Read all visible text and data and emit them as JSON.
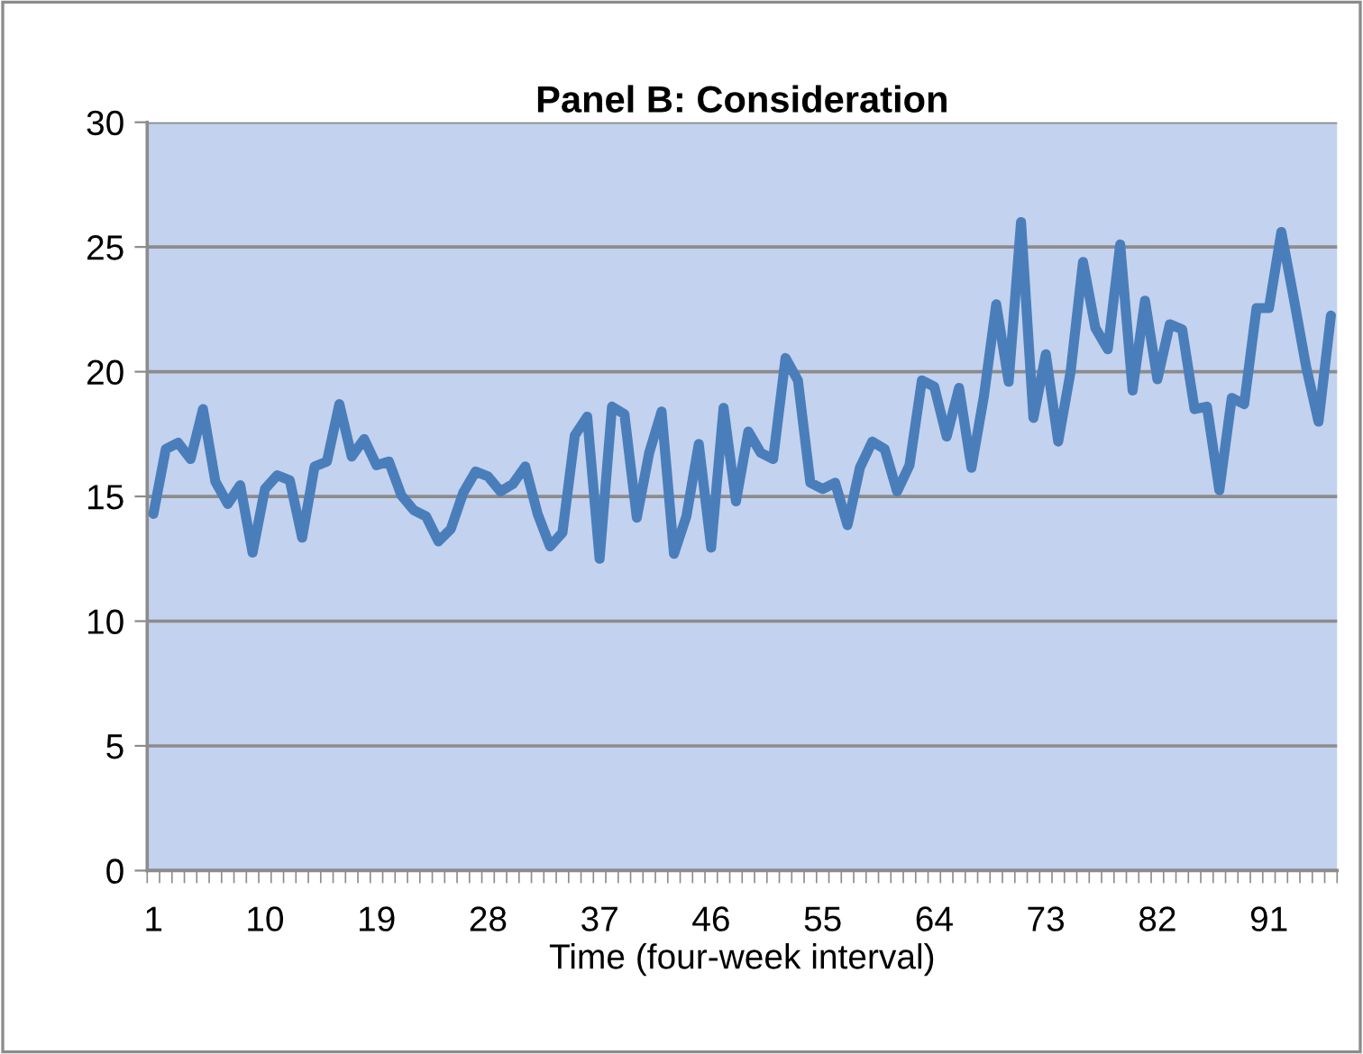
{
  "chart_data": {
    "type": "line",
    "title": "Panel B: Consideration",
    "xlabel": "Time (four-week interval)",
    "categories": [
      "1",
      null,
      null,
      null,
      null,
      null,
      null,
      null,
      null,
      "10",
      null,
      null,
      null,
      null,
      null,
      null,
      null,
      null,
      "19",
      null,
      null,
      null,
      null,
      null,
      null,
      null,
      null,
      "28",
      null,
      null,
      null,
      null,
      null,
      null,
      null,
      null,
      "37",
      null,
      null,
      null,
      null,
      null,
      null,
      null,
      null,
      "46",
      null,
      null,
      null,
      null,
      null,
      null,
      null,
      null,
      "55",
      null,
      null,
      null,
      null,
      null,
      null,
      null,
      null,
      "64",
      null,
      null,
      null,
      null,
      null,
      null,
      null,
      null,
      "73",
      null,
      null,
      null,
      null,
      null,
      null,
      null,
      null,
      "82",
      null,
      null,
      null,
      null,
      null,
      null,
      null,
      null,
      "91",
      null,
      null,
      null,
      null,
      null
    ],
    "series": [
      {
        "color": "#4a7ebb",
        "values": [
          14.3,
          16.9,
          17.15,
          16.5,
          18.5,
          15.6,
          14.7,
          15.45,
          12.75,
          15.3,
          15.85,
          15.65,
          13.35,
          16.2,
          16.4,
          18.7,
          16.6,
          17.3,
          16.25,
          16.4,
          15.05,
          14.45,
          14.2,
          13.2,
          13.7,
          15.15,
          16.0,
          15.8,
          15.2,
          15.5,
          16.2,
          14.3,
          13.0,
          13.55,
          17.45,
          18.2,
          12.5,
          18.6,
          18.3,
          14.15,
          16.75,
          18.4,
          12.7,
          14.2,
          17.1,
          12.95,
          18.55,
          14.8,
          17.6,
          16.75,
          16.5,
          20.55,
          19.65,
          15.55,
          15.3,
          15.55,
          13.85,
          16.15,
          17.2,
          16.9,
          15.2,
          16.25,
          19.65,
          19.4,
          17.4,
          19.35,
          16.15,
          19.0,
          22.7,
          19.6,
          26.0,
          18.15,
          20.7,
          17.2,
          20.0,
          24.4,
          21.75,
          20.9,
          25.1,
          19.25,
          22.85,
          19.7,
          21.9,
          21.7,
          18.5,
          18.6,
          15.25,
          18.95,
          18.7,
          22.55,
          22.55,
          25.6,
          22.95,
          20.2,
          18.0,
          22.25
        ]
      }
    ],
    "ylim": [
      0,
      30
    ],
    "yticks": [
      0,
      5,
      10,
      15,
      20,
      25,
      30
    ],
    "grid": "y",
    "marker": "none",
    "line_style": "solid"
  }
}
